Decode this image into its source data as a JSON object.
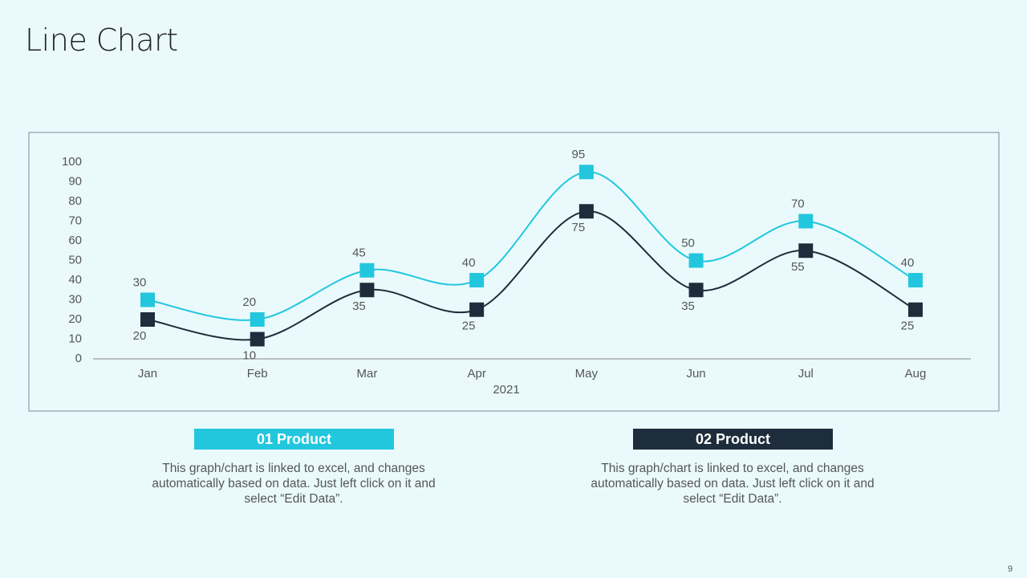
{
  "page_title": "Line Chart",
  "chart_data": {
    "type": "line",
    "categories": [
      "Jan",
      "Feb",
      "Mar",
      "Apr",
      "May",
      "Jun",
      "Jul",
      "Aug"
    ],
    "x_label": "2021",
    "series": [
      {
        "name": "01 Product",
        "color": "#22c7de",
        "values": [
          30,
          20,
          45,
          40,
          95,
          50,
          70,
          40
        ]
      },
      {
        "name": "02 Product",
        "color": "#1e2d3b",
        "values": [
          20,
          10,
          35,
          25,
          75,
          35,
          55,
          25
        ]
      }
    ],
    "ylim": [
      0,
      100
    ],
    "yticks": [
      0,
      10,
      20,
      30,
      40,
      50,
      60,
      70,
      80,
      90,
      100
    ]
  },
  "notes": [
    "This graph/chart is linked to excel, and changes automatically based on data. Just left click on it and select “Edit Data”.",
    "This graph/chart is linked to excel, and changes automatically based on data. Just left click on it and select “Edit Data”."
  ],
  "page_number": "9"
}
